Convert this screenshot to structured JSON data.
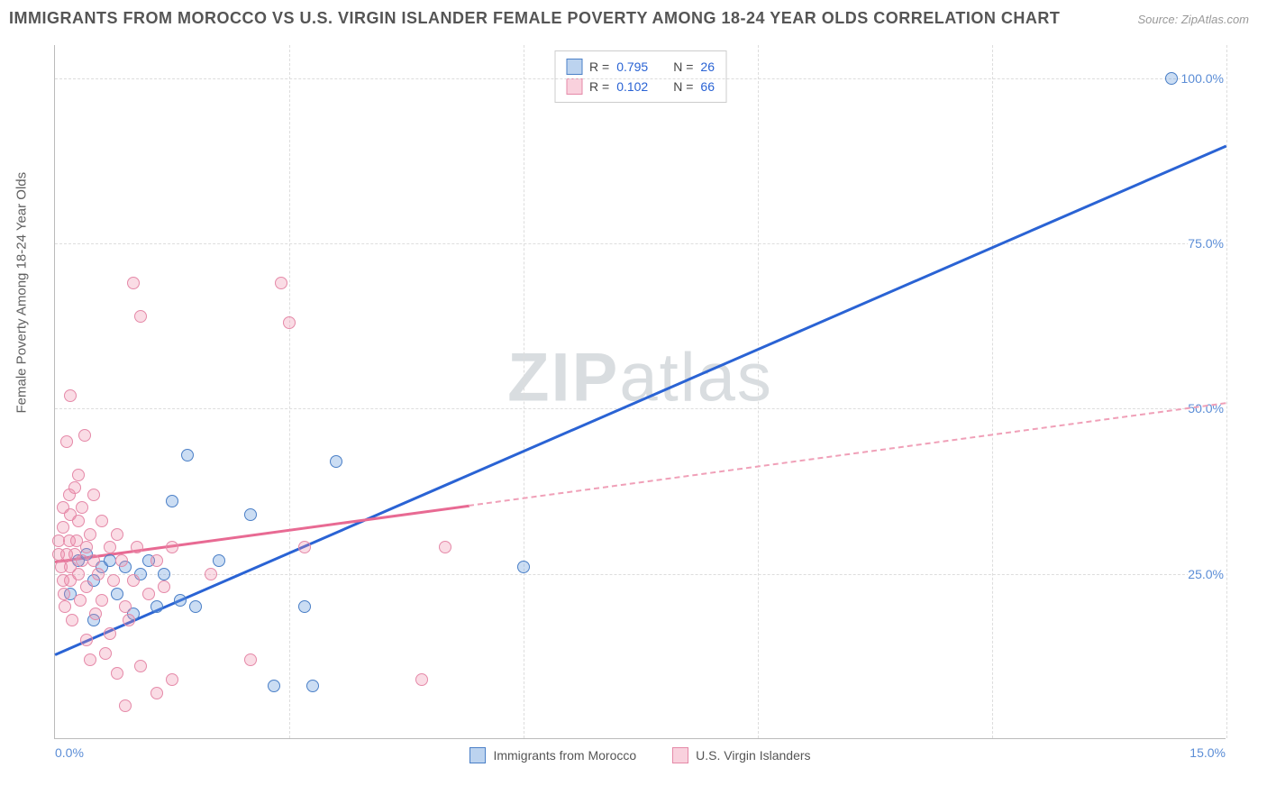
{
  "title": "IMMIGRANTS FROM MOROCCO VS U.S. VIRGIN ISLANDER FEMALE POVERTY AMONG 18-24 YEAR OLDS CORRELATION CHART",
  "source": "Source: ZipAtlas.com",
  "y_axis_label": "Female Poverty Among 18-24 Year Olds",
  "watermark": "ZIPatlas",
  "chart": {
    "type": "scatter",
    "xlim": [
      0,
      15
    ],
    "ylim": [
      0,
      105
    ],
    "x_ticks": [
      0,
      3,
      6,
      9,
      12,
      15
    ],
    "y_ticks": [
      25,
      50,
      75,
      100
    ],
    "x_tick_labels": {
      "first": "0.0%",
      "last": "15.0%"
    },
    "y_tick_labels": [
      "25.0%",
      "50.0%",
      "75.0%",
      "100.0%"
    ],
    "grid_color": "#dddddd",
    "background_color": "#ffffff",
    "colors": {
      "blue_fill": "rgba(107,158,220,0.35)",
      "blue_stroke": "#4a7fc7",
      "blue_line": "#2a63d4",
      "pink_fill": "rgba(240,140,170,0.30)",
      "pink_stroke": "#e589a8",
      "pink_line": "#e86a93",
      "axis_text": "#5b8dd6"
    },
    "series": [
      {
        "name": "Immigrants from Morocco",
        "color_key": "blue",
        "R": 0.795,
        "N": 26,
        "regression": {
          "x1": 0,
          "y1": 13,
          "x2": 15,
          "y2": 90,
          "dashed_after_x": null
        },
        "points": [
          [
            0.2,
            22
          ],
          [
            0.3,
            27
          ],
          [
            0.4,
            28
          ],
          [
            0.5,
            18
          ],
          [
            0.5,
            24
          ],
          [
            0.6,
            26
          ],
          [
            0.7,
            27
          ],
          [
            0.8,
            22
          ],
          [
            0.9,
            26
          ],
          [
            1.0,
            19
          ],
          [
            1.1,
            25
          ],
          [
            1.2,
            27
          ],
          [
            1.3,
            20
          ],
          [
            1.4,
            25
          ],
          [
            1.5,
            36
          ],
          [
            1.6,
            21
          ],
          [
            1.7,
            43
          ],
          [
            1.8,
            20
          ],
          [
            2.1,
            27
          ],
          [
            2.5,
            34
          ],
          [
            2.8,
            8
          ],
          [
            3.2,
            20
          ],
          [
            3.3,
            8
          ],
          [
            3.6,
            42
          ],
          [
            6.0,
            26
          ],
          [
            14.3,
            100
          ]
        ]
      },
      {
        "name": "U.S. Virgin Islanders",
        "color_key": "pink",
        "R": 0.102,
        "N": 66,
        "regression": {
          "x1": 0,
          "y1": 27,
          "x2": 15,
          "y2": 51,
          "dashed_after_x": 5.3
        },
        "points": [
          [
            0.05,
            28
          ],
          [
            0.05,
            30
          ],
          [
            0.08,
            26
          ],
          [
            0.1,
            24
          ],
          [
            0.1,
            32
          ],
          [
            0.1,
            35
          ],
          [
            0.12,
            22
          ],
          [
            0.13,
            20
          ],
          [
            0.15,
            28
          ],
          [
            0.15,
            45
          ],
          [
            0.18,
            37
          ],
          [
            0.18,
            30
          ],
          [
            0.2,
            24
          ],
          [
            0.2,
            26
          ],
          [
            0.2,
            34
          ],
          [
            0.2,
            52
          ],
          [
            0.22,
            18
          ],
          [
            0.25,
            28
          ],
          [
            0.25,
            38
          ],
          [
            0.28,
            30
          ],
          [
            0.3,
            25
          ],
          [
            0.3,
            33
          ],
          [
            0.3,
            40
          ],
          [
            0.32,
            21
          ],
          [
            0.35,
            27
          ],
          [
            0.35,
            35
          ],
          [
            0.38,
            46
          ],
          [
            0.4,
            23
          ],
          [
            0.4,
            29
          ],
          [
            0.4,
            15
          ],
          [
            0.45,
            31
          ],
          [
            0.45,
            12
          ],
          [
            0.5,
            27
          ],
          [
            0.5,
            37
          ],
          [
            0.52,
            19
          ],
          [
            0.55,
            25
          ],
          [
            0.6,
            21
          ],
          [
            0.6,
            33
          ],
          [
            0.65,
            13
          ],
          [
            0.7,
            29
          ],
          [
            0.7,
            16
          ],
          [
            0.75,
            24
          ],
          [
            0.8,
            31
          ],
          [
            0.8,
            10
          ],
          [
            0.85,
            27
          ],
          [
            0.9,
            20
          ],
          [
            0.9,
            5
          ],
          [
            0.95,
            18
          ],
          [
            1.0,
            24
          ],
          [
            1.0,
            69
          ],
          [
            1.05,
            29
          ],
          [
            1.1,
            11
          ],
          [
            1.1,
            64
          ],
          [
            1.2,
            22
          ],
          [
            1.3,
            27
          ],
          [
            1.3,
            7
          ],
          [
            1.4,
            23
          ],
          [
            1.5,
            9
          ],
          [
            1.5,
            29
          ],
          [
            2.0,
            25
          ],
          [
            2.5,
            12
          ],
          [
            2.9,
            69
          ],
          [
            3.0,
            63
          ],
          [
            3.2,
            29
          ],
          [
            4.7,
            9
          ],
          [
            5.0,
            29
          ]
        ]
      }
    ]
  },
  "legend_top": [
    {
      "swatch": "blue",
      "R_label": "R =",
      "R_val": "0.795",
      "N_label": "N =",
      "N_val": "26"
    },
    {
      "swatch": "pink",
      "R_label": "R =",
      "R_val": "0.102",
      "N_label": "N =",
      "N_val": "66"
    }
  ],
  "legend_bottom": [
    {
      "swatch": "blue",
      "label": "Immigrants from Morocco"
    },
    {
      "swatch": "pink",
      "label": "U.S. Virgin Islanders"
    }
  ]
}
